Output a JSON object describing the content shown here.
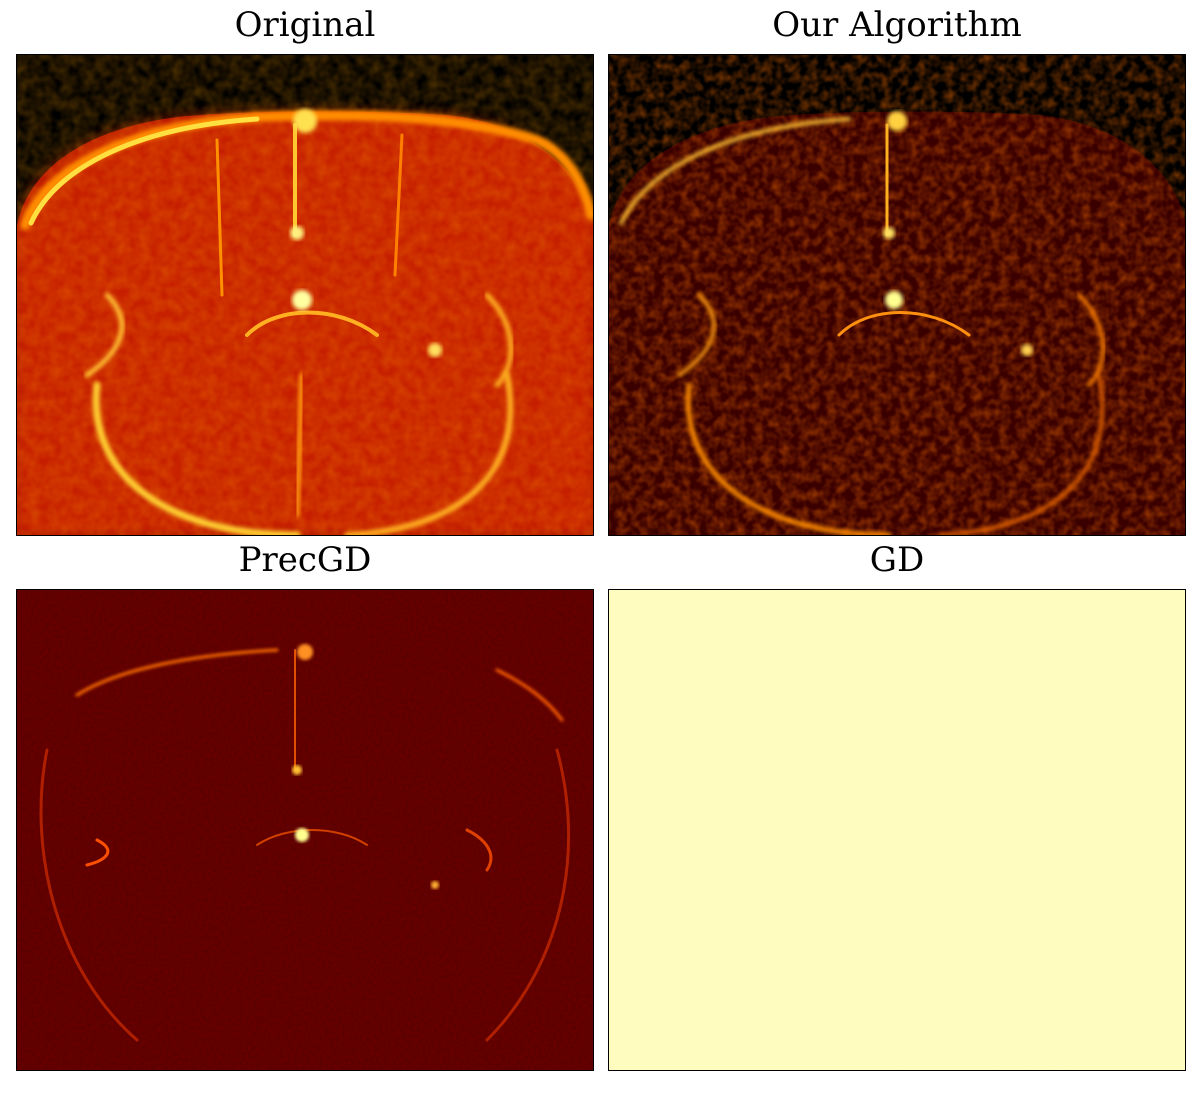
{
  "panels": {
    "original": {
      "title": "Original",
      "colormap": "hot",
      "mean_intensity": 0.55
    },
    "our_algorithm": {
      "title": "Our Algorithm",
      "colormap": "hot",
      "mean_intensity": 0.38
    },
    "precgd": {
      "title": "PrecGD",
      "colormap": "hot",
      "mean_intensity": 0.3
    },
    "gd": {
      "title": "GD",
      "colormap": "hot",
      "mean_intensity": 0.97
    }
  },
  "colors": {
    "background": "#ffffff",
    "hot_dark": "#000000",
    "hot_red": "#c00000",
    "hot_orange": "#ff6000",
    "hot_yellow": "#ffff40",
    "gd_fill": "#fffcc0"
  }
}
